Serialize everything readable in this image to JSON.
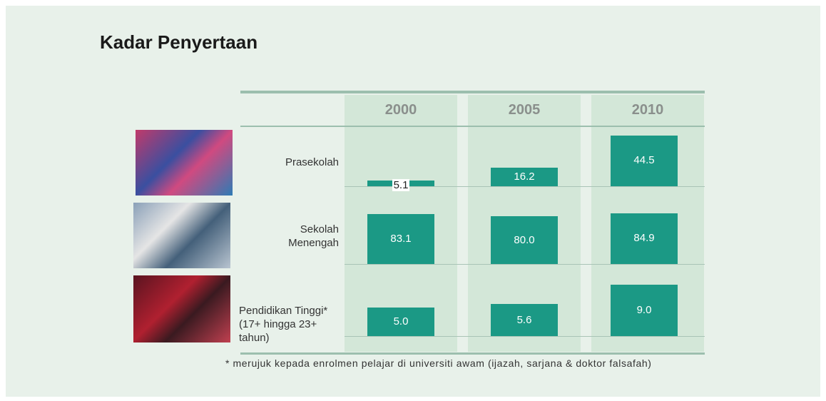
{
  "chart_data": {
    "type": "bar",
    "title": "Kadar Penyertaan",
    "categories": [
      "2000",
      "2005",
      "2010"
    ],
    "color": "#1b9985",
    "series": [
      {
        "name": "Prasekolah",
        "values": [
          5.1,
          16.2,
          44.5
        ],
        "value_labels": [
          "5.1",
          "16.2",
          "44.5"
        ],
        "ylim": [
          0,
          45
        ]
      },
      {
        "name": "Sekolah Menengah",
        "values": [
          83.1,
          80.0,
          84.9
        ],
        "value_labels": [
          "83.1",
          "80.0",
          "84.9"
        ],
        "ylim": [
          0,
          86
        ]
      },
      {
        "name": "Pendidikan Tinggi* (17+ hingga 23+ tahun)",
        "values": [
          5.0,
          5.6,
          9.0
        ],
        "value_labels": [
          "5.0",
          "5.6",
          "9.0"
        ],
        "ylim": [
          0,
          9
        ]
      }
    ],
    "footnote": "* merujuk kepada enrolmen pelajar di universiti awam (ijazah, sarjana & doktor falsafah)"
  }
}
